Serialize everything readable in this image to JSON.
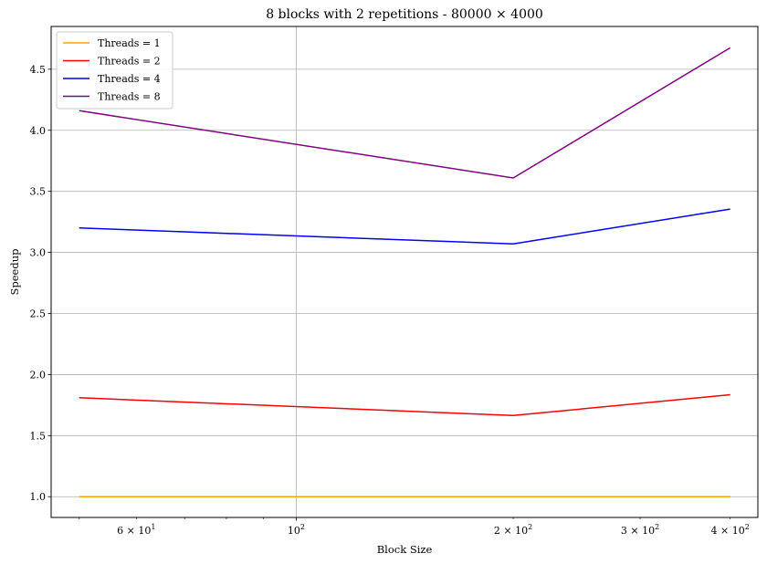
{
  "chart_data": {
    "type": "line",
    "title": "8 blocks with 2 repetitions - 80000 × 4000",
    "xlabel": "Block Size",
    "ylabel": "Speedup",
    "xscale": "log",
    "xlim": [
      45.7,
      437
    ],
    "ylim": [
      0.83,
      4.85
    ],
    "x": [
      50,
      200,
      400
    ],
    "x_tick_values": [
      60,
      100,
      200,
      300,
      400
    ],
    "x_tick_labels": [
      {
        "base": "6 × 10",
        "exp": "1"
      },
      {
        "base": "10",
        "exp": "2"
      },
      {
        "base": "2 × 10",
        "exp": "2"
      },
      {
        "base": "3 × 10",
        "exp": "2"
      },
      {
        "base": "4 × 10",
        "exp": "2"
      }
    ],
    "y_ticks": [
      1.0,
      1.5,
      2.0,
      2.5,
      3.0,
      3.5,
      4.0,
      4.5
    ],
    "y_tick_labels": [
      "1.0",
      "1.5",
      "2.0",
      "2.5",
      "3.0",
      "3.5",
      "4.0",
      "4.5"
    ],
    "grid": true,
    "legend_position": "top-left",
    "series": [
      {
        "name": "Threads = 1",
        "color": "#ffa500",
        "values": [
          1.0,
          1.0,
          1.0
        ]
      },
      {
        "name": "Threads = 2",
        "color": "#ff0000",
        "values": [
          1.81,
          1.665,
          1.835
        ]
      },
      {
        "name": "Threads = 4",
        "color": "#0000ff",
        "values": [
          3.2,
          3.07,
          3.355
        ]
      },
      {
        "name": "Threads = 8",
        "color": "#800080",
        "values": [
          4.16,
          3.61,
          4.675
        ]
      }
    ]
  }
}
